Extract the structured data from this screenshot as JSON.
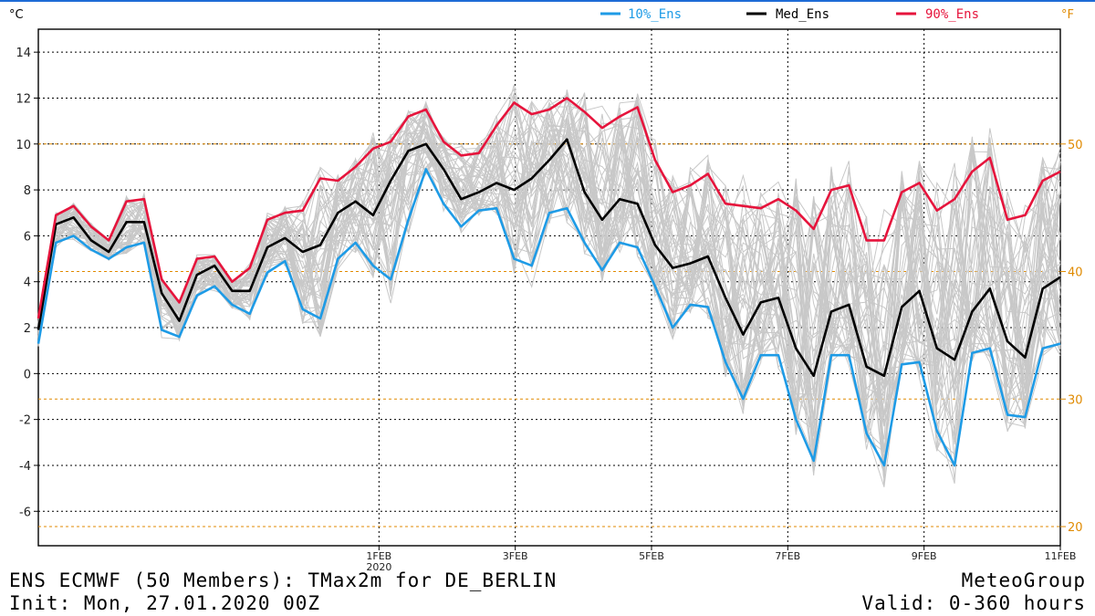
{
  "chart_data": {
    "type": "line",
    "unit_left": "°C",
    "unit_right": "°F",
    "ylim": [
      -7.5,
      15
    ],
    "yticks": [
      -6,
      -4,
      -2,
      0,
      2,
      4,
      6,
      8,
      10,
      12,
      14
    ],
    "f_ticks": [
      20,
      30,
      40,
      50
    ],
    "x_range_hours": [
      0,
      360
    ],
    "x_ticks": [
      {
        "label": "1FEB",
        "sub": "2020",
        "hour": 120
      },
      {
        "label": "3FEB",
        "sub": "",
        "hour": 168
      },
      {
        "label": "5FEB",
        "sub": "",
        "hour": 216
      },
      {
        "label": "7FEB",
        "sub": "",
        "hour": 264
      },
      {
        "label": "9FEB",
        "sub": "",
        "hour": 312
      },
      {
        "label": "11FEB",
        "sub": "",
        "hour": 360
      }
    ],
    "series": [
      {
        "name": "10%_Ens",
        "color": "#1e9be6",
        "values": [
          1.3,
          5.7,
          6.0,
          5.4,
          5.0,
          5.5,
          5.7,
          1.9,
          1.6,
          3.4,
          3.8,
          3.0,
          2.6,
          4.4,
          4.9,
          2.8,
          2.4,
          5.0,
          5.7,
          4.7,
          4.1,
          6.7,
          8.9,
          7.4,
          6.4,
          7.1,
          7.2,
          5.0,
          4.7,
          7.0,
          7.2,
          5.7,
          4.5,
          5.7,
          5.5,
          3.8,
          2.0,
          3.0,
          2.9,
          0.5,
          -1.1,
          0.8,
          0.8,
          -2.0,
          -3.8,
          0.8,
          0.8,
          -2.6,
          -4.0,
          0.4,
          0.5,
          -2.5,
          -4.0,
          0.9,
          1.1,
          -1.8,
          -1.9,
          1.1,
          1.3
        ]
      },
      {
        "name": "Med_Ens",
        "color": "#000000",
        "values": [
          1.9,
          6.5,
          6.8,
          5.8,
          5.3,
          6.6,
          6.6,
          3.5,
          2.3,
          4.3,
          4.7,
          3.6,
          3.6,
          5.5,
          5.9,
          5.3,
          5.6,
          7.0,
          7.5,
          6.9,
          8.4,
          9.7,
          10.0,
          8.9,
          7.6,
          7.9,
          8.3,
          8.0,
          8.5,
          9.3,
          10.2,
          7.9,
          6.7,
          7.6,
          7.4,
          5.6,
          4.6,
          4.8,
          5.1,
          3.3,
          1.7,
          3.1,
          3.3,
          1.1,
          -0.1,
          2.7,
          3.0,
          0.3,
          -0.1,
          2.9,
          3.6,
          1.1,
          0.6,
          2.7,
          3.7,
          1.4,
          0.7,
          3.7,
          4.2
        ]
      },
      {
        "name": "90%_Ens",
        "color": "#e6143c",
        "values": [
          2.4,
          6.9,
          7.3,
          6.4,
          5.8,
          7.5,
          7.6,
          4.1,
          3.1,
          5.0,
          5.1,
          4.0,
          4.6,
          6.7,
          7.0,
          7.1,
          8.5,
          8.4,
          9.0,
          9.8,
          10.1,
          11.2,
          11.5,
          10.1,
          9.5,
          9.6,
          10.8,
          11.8,
          11.3,
          11.5,
          12.0,
          11.4,
          10.7,
          11.2,
          11.6,
          9.3,
          7.9,
          8.2,
          8.7,
          7.4,
          7.3,
          7.2,
          7.6,
          7.1,
          6.3,
          8.0,
          8.2,
          5.8,
          5.8,
          7.9,
          8.3,
          7.1,
          7.6,
          8.8,
          9.4,
          6.7,
          6.9,
          8.4,
          8.8
        ]
      }
    ],
    "ensemble_members": 50,
    "ensemble_color": "#c8c8c8"
  },
  "footer": {
    "title": "ENS ECMWF (50 Members): TMax2m for DE_BERLIN",
    "init": "Init: Mon, 27.01.2020 00Z",
    "brand": "MeteoGroup",
    "valid": "Valid: 0-360 hours"
  },
  "colors": {
    "axis": "#000000",
    "grid_dotted": "#000000",
    "fahrenheit": "#e08a00",
    "top_border": "#1e6bd6"
  }
}
